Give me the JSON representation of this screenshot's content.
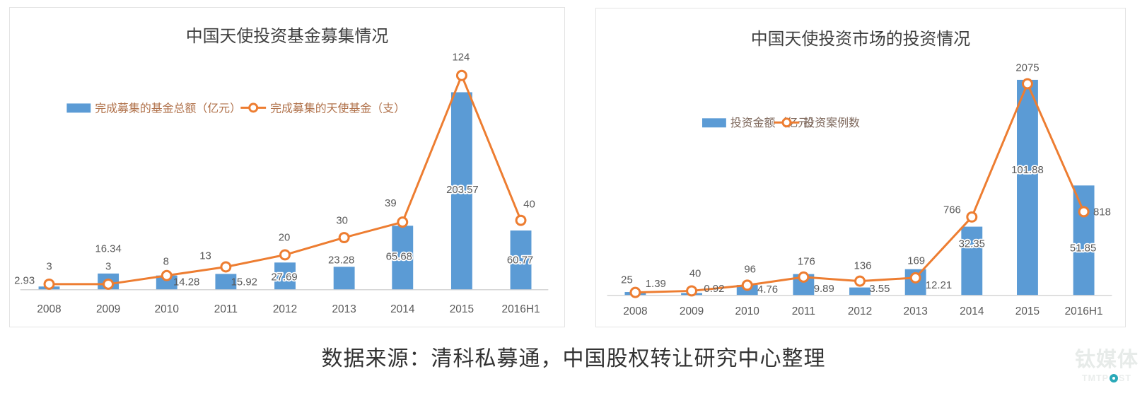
{
  "caption": "数据来源：清科私募通，中国股权转让研究中心整理",
  "watermark": {
    "cn": "钛媒体",
    "en": "TMTPOST"
  },
  "colors": {
    "bar": "#5b9bd5",
    "line": "#ed7d31",
    "marker_fill": "#ffffff",
    "data_label": "#595959",
    "title": "#3f3f3f",
    "axis": "#d6d6d6",
    "panel_border": "#e3e3e3",
    "caption": "#333333",
    "legend_text": [
      "#b0714a",
      "#7e685c"
    ],
    "watermark_gray": "#e7ebe9",
    "watermark_teal": "#2aa9b8"
  },
  "chart_data": [
    {
      "type": "bar",
      "title": "中国天使投资基金募集情况",
      "categories": [
        "2008",
        "2009",
        "2010",
        "2011",
        "2012",
        "2013",
        "2014",
        "2015",
        "2016H1"
      ],
      "series": [
        {
          "name": "完成募集的基金总额（亿元）",
          "type": "bar",
          "values": [
            2.93,
            16.34,
            14.28,
            15.92,
            27.69,
            23.28,
            65.68,
            203.57,
            60.77
          ]
        },
        {
          "name": "完成募集的天使基金（支）",
          "type": "line",
          "values": [
            3,
            3,
            8,
            13,
            20,
            30,
            39,
            124,
            40
          ]
        }
      ],
      "grid": false,
      "legend_position": "middle-left",
      "data_labels": true,
      "xlabel": "",
      "ylabel": ""
    },
    {
      "type": "bar",
      "title": "中国天使投资市场的投资情况",
      "categories": [
        "2008",
        "2009",
        "2010",
        "2011",
        "2012",
        "2013",
        "2014",
        "2015",
        "2016H1"
      ],
      "series": [
        {
          "name": "投资金额（亿元）",
          "type": "bar",
          "values": [
            1.39,
            0.92,
            4.76,
            9.89,
            3.55,
            12.21,
            32.35,
            101.88,
            51.85
          ]
        },
        {
          "name": "投资案例数",
          "type": "line",
          "values": [
            25,
            40,
            96,
            176,
            136,
            169,
            766,
            2075,
            818
          ]
        }
      ],
      "grid": false,
      "legend_position": "middle-left",
      "data_labels": true,
      "xlabel": "",
      "ylabel": ""
    }
  ]
}
